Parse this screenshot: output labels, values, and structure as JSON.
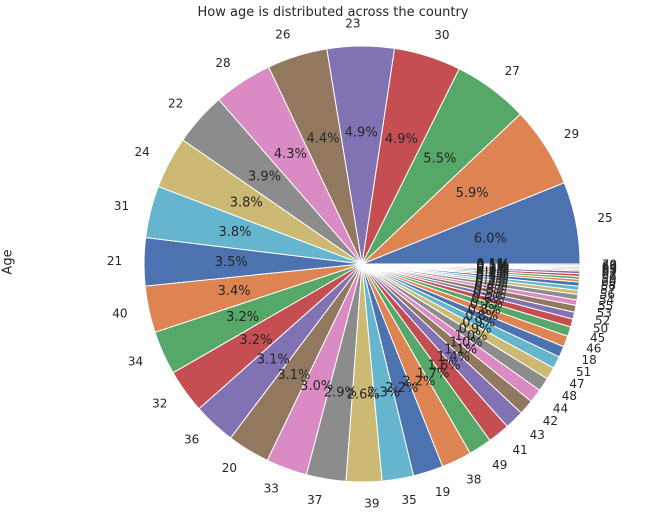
{
  "chart_data": {
    "type": "pie",
    "title": "How age is distributed across the country",
    "ylabel": "Age",
    "autopct_format": "%1.1f%%",
    "start_angle_deg": 0,
    "direction": "counterclockwise",
    "slices": [
      {
        "label": "25",
        "value": 6.0
      },
      {
        "label": "29",
        "value": 5.9
      },
      {
        "label": "27",
        "value": 5.5
      },
      {
        "label": "30",
        "value": 4.9
      },
      {
        "label": "23",
        "value": 4.9
      },
      {
        "label": "26",
        "value": 4.4
      },
      {
        "label": "28",
        "value": 4.3
      },
      {
        "label": "22",
        "value": 3.9
      },
      {
        "label": "24",
        "value": 3.8
      },
      {
        "label": "31",
        "value": 3.8
      },
      {
        "label": "21",
        "value": 3.5
      },
      {
        "label": "40",
        "value": 3.4
      },
      {
        "label": "34",
        "value": 3.2
      },
      {
        "label": "32",
        "value": 3.2
      },
      {
        "label": "36",
        "value": 3.1
      },
      {
        "label": "20",
        "value": 3.1
      },
      {
        "label": "33",
        "value": 3.0
      },
      {
        "label": "37",
        "value": 2.9
      },
      {
        "label": "39",
        "value": 2.6
      },
      {
        "label": "35",
        "value": 2.3
      },
      {
        "label": "19",
        "value": 2.2
      },
      {
        "label": "38",
        "value": 2.2
      },
      {
        "label": "49",
        "value": 1.7
      },
      {
        "label": "41",
        "value": 1.6
      },
      {
        "label": "43",
        "value": 1.4
      },
      {
        "label": "42",
        "value": 1.1
      },
      {
        "label": "44",
        "value": 1.0
      },
      {
        "label": "48",
        "value": 1.0
      },
      {
        "label": "47",
        "value": 0.9
      },
      {
        "label": "51",
        "value": 0.9
      },
      {
        "label": "18",
        "value": 0.8
      },
      {
        "label": "46",
        "value": 0.8
      },
      {
        "label": "45",
        "value": 0.7
      },
      {
        "label": "50",
        "value": 0.6
      },
      {
        "label": "52",
        "value": 0.5
      },
      {
        "label": "53",
        "value": 0.5
      },
      {
        "label": "55",
        "value": 0.4
      },
      {
        "label": "54",
        "value": 0.4
      },
      {
        "label": "56",
        "value": 0.3
      },
      {
        "label": "57",
        "value": 0.3
      },
      {
        "label": "58",
        "value": 0.3
      },
      {
        "label": "60",
        "value": 0.2
      },
      {
        "label": "59",
        "value": 0.2
      },
      {
        "label": "62",
        "value": 0.2
      },
      {
        "label": "61",
        "value": 0.2
      },
      {
        "label": "65",
        "value": 0.1
      },
      {
        "label": "63",
        "value": 0.1
      },
      {
        "label": "64",
        "value": 0.1
      },
      {
        "label": "66",
        "value": 0.1
      },
      {
        "label": "70",
        "value": 0.1
      }
    ],
    "colors": [
      "#4c72b0",
      "#dd8452",
      "#55a868",
      "#c44e52",
      "#8172b3",
      "#937860",
      "#da8bc3",
      "#8c8c8c",
      "#ccb974",
      "#64b5cd"
    ],
    "wedge_edge_color": "#ffffff",
    "grid": false,
    "legend": "none"
  }
}
